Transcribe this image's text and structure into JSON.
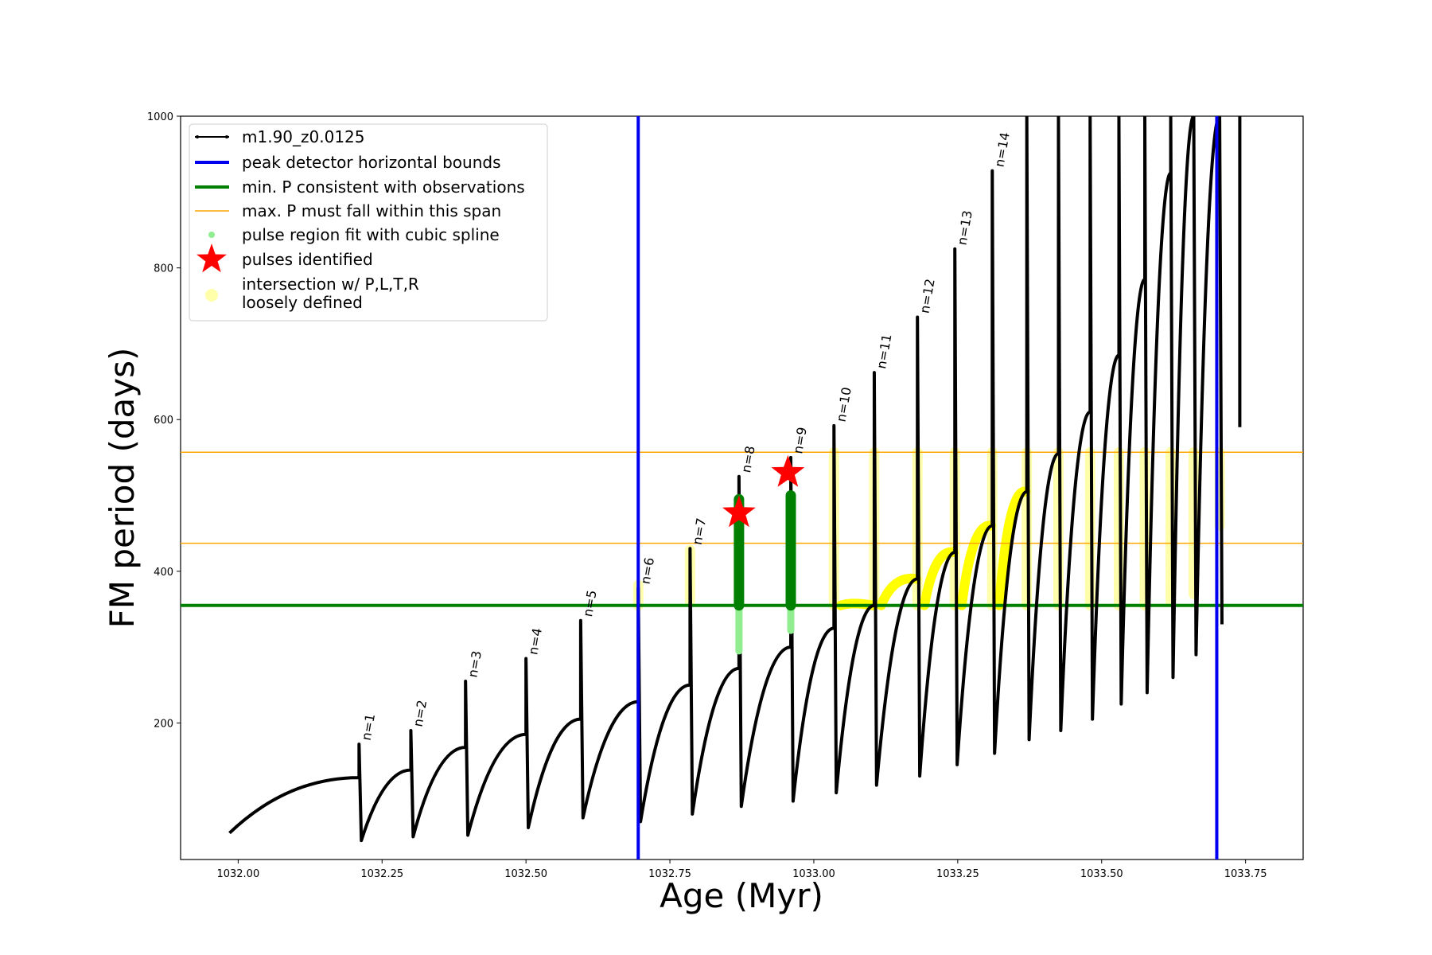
{
  "chart_data": {
    "type": "line",
    "xlabel": "Age (Myr)",
    "ylabel": "FM period (days)",
    "xlim": [
      1031.9,
      1033.85
    ],
    "ylim": [
      20,
      1000
    ],
    "xticks": [
      1032.0,
      1032.25,
      1032.5,
      1032.75,
      1033.0,
      1033.25,
      1033.5,
      1033.75
    ],
    "xtick_labels": [
      "1032.00",
      "1032.25",
      "1032.50",
      "1032.75",
      "1033.00",
      "1033.25",
      "1033.50",
      "1033.75"
    ],
    "yticks": [
      200,
      400,
      600,
      800,
      1000
    ],
    "ytick_labels": [
      "200",
      "400",
      "600",
      "800",
      "1000"
    ],
    "grid": false,
    "legend_position": "top-left",
    "legend": [
      {
        "label": "m1.90_z0.0125",
        "kind": "line-marker",
        "color": "#000000"
      },
      {
        "label": "peak detector horizontal bounds",
        "kind": "line",
        "color": "#0000ee"
      },
      {
        "label": "min. P consistent with observations",
        "kind": "line",
        "color": "#008000"
      },
      {
        "label": "max. P must fall within this span",
        "kind": "line",
        "color": "#ffa500"
      },
      {
        "label": "pulse region fit with cubic spline",
        "kind": "dot",
        "color": "#90ee90"
      },
      {
        "label": "pulses identified",
        "kind": "star",
        "color": "#ff0000"
      },
      {
        "label": "intersection w/ P,L,T,R",
        "label2": "loosely defined",
        "kind": "dot",
        "color": "#ffffaa"
      }
    ],
    "vlines": [
      {
        "x": 1032.695,
        "color": "#0000ee"
      },
      {
        "x": 1033.7,
        "color": "#0000ee"
      }
    ],
    "hlines": [
      {
        "y": 355,
        "color": "#008000",
        "width": 4
      },
      {
        "y": 557,
        "color": "#ffa500",
        "width": 1.5
      },
      {
        "y": 437,
        "color": "#ffa500",
        "width": 1.5
      }
    ],
    "pulses": [
      {
        "label": "n=1",
        "x": 1032.21,
        "peak": 172,
        "dip": 45,
        "prev_peak": 128
      },
      {
        "label": "n=2",
        "x": 1032.3,
        "peak": 190,
        "dip": 50,
        "prev_peak": 138
      },
      {
        "label": "n=3",
        "x": 1032.395,
        "peak": 255,
        "dip": 52,
        "prev_peak": 168
      },
      {
        "label": "n=4",
        "x": 1032.5,
        "peak": 285,
        "dip": 62,
        "prev_peak": 185
      },
      {
        "label": "n=5",
        "x": 1032.595,
        "peak": 335,
        "dip": 75,
        "prev_peak": 205
      },
      {
        "label": "n=6",
        "x": 1032.695,
        "peak": 378,
        "dip": 70,
        "prev_peak": 228
      },
      {
        "label": "n=7",
        "x": 1032.785,
        "peak": 430,
        "dip": 80,
        "prev_peak": 250
      },
      {
        "label": "n=8",
        "x": 1032.87,
        "peak": 525,
        "dip": 90,
        "prev_peak": 272
      },
      {
        "label": "n=9",
        "x": 1032.96,
        "peak": 550,
        "dip": 97,
        "prev_peak": 300
      },
      {
        "label": "n=10",
        "x": 1033.035,
        "peak": 592,
        "dip": 108,
        "prev_peak": 325
      },
      {
        "label": "n=11",
        "x": 1033.105,
        "peak": 662,
        "dip": 118,
        "prev_peak": 355
      },
      {
        "label": "n=12",
        "x": 1033.18,
        "peak": 735,
        "dip": 130,
        "prev_peak": 390
      },
      {
        "label": "n=13",
        "x": 1033.245,
        "peak": 825,
        "dip": 145,
        "prev_peak": 425
      },
      {
        "label": "n=14",
        "x": 1033.31,
        "peak": 928,
        "dip": 160,
        "prev_peak": 460
      },
      {
        "label": "",
        "x": 1033.37,
        "peak": 1000,
        "dip": 178,
        "prev_peak": 505
      },
      {
        "label": "",
        "x": 1033.425,
        "peak": 1000,
        "dip": 190,
        "prev_peak": 555
      },
      {
        "label": "",
        "x": 1033.48,
        "peak": 1000,
        "dip": 205,
        "prev_peak": 610
      },
      {
        "label": "",
        "x": 1033.53,
        "peak": 1000,
        "dip": 225,
        "prev_peak": 685
      },
      {
        "label": "",
        "x": 1033.575,
        "peak": 1000,
        "dip": 240,
        "prev_peak": 785
      },
      {
        "label": "",
        "x": 1033.62,
        "peak": 1000,
        "dip": 260,
        "prev_peak": 925
      },
      {
        "label": "",
        "x": 1033.66,
        "peak": 1000,
        "dip": 290,
        "prev_peak": 1000
      },
      {
        "label": "",
        "x": 1033.705,
        "peak": 1000,
        "dip": 330,
        "prev_peak": 1000
      }
    ],
    "track_start": {
      "x": 1031.985,
      "y": 30
    },
    "track_end": {
      "x": 1033.74,
      "top": 1000,
      "bottom": 590
    },
    "identified_pulses": [
      {
        "x": 1032.87,
        "y": 477
      },
      {
        "x": 1032.955,
        "y": 530
      }
    ],
    "spline_regions": [
      {
        "x": 1032.87,
        "y_low": 295,
        "y_high": 495
      },
      {
        "x": 1032.96,
        "y_low": 322,
        "y_high": 500
      }
    ],
    "intersection_columns": [
      {
        "x": 1032.695,
        "y_low": 355,
        "y_high": 382
      },
      {
        "x": 1032.785,
        "y_low": 360,
        "y_high": 428
      },
      {
        "x": 1033.035,
        "y_low": 355,
        "y_high": 557
      },
      {
        "x": 1033.105,
        "y_low": 355,
        "y_high": 557
      },
      {
        "x": 1033.18,
        "y_low": 355,
        "y_high": 557
      },
      {
        "x": 1033.245,
        "y_low": 355,
        "y_high": 557
      },
      {
        "x": 1033.31,
        "y_low": 355,
        "y_high": 557
      },
      {
        "x": 1033.37,
        "y_low": 355,
        "y_high": 557
      },
      {
        "x": 1033.425,
        "y_low": 355,
        "y_high": 557
      },
      {
        "x": 1033.48,
        "y_low": 355,
        "y_high": 557
      },
      {
        "x": 1033.53,
        "y_low": 355,
        "y_high": 557
      },
      {
        "x": 1033.575,
        "y_low": 355,
        "y_high": 557
      },
      {
        "x": 1033.62,
        "y_low": 360,
        "y_high": 557
      },
      {
        "x": 1033.66,
        "y_low": 370,
        "y_high": 557
      },
      {
        "x": 1033.705,
        "y_low": 460,
        "y_high": 557
      }
    ]
  }
}
